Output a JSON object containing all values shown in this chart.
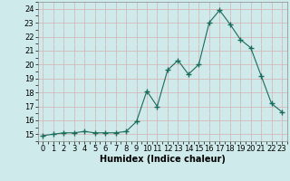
{
  "xlabel": "Humidex (Indice chaleur)",
  "x_values": [
    0,
    1,
    2,
    3,
    4,
    5,
    6,
    7,
    8,
    9,
    10,
    11,
    12,
    13,
    14,
    15,
    16,
    17,
    18,
    19,
    20,
    21,
    22,
    23
  ],
  "y_values": [
    14.9,
    15.0,
    15.1,
    15.1,
    15.2,
    15.1,
    15.1,
    15.1,
    15.2,
    15.9,
    18.1,
    17.0,
    19.6,
    20.3,
    19.3,
    20.0,
    23.0,
    23.9,
    22.9,
    21.8,
    21.2,
    19.2,
    17.2,
    16.6
  ],
  "line_color": "#1a6b5a",
  "marker": "+",
  "marker_size": 4,
  "bg_color": "#ceeaea",
  "grid_color_major": "#d4b8b8",
  "grid_color_minor": "#d8e8e8",
  "ylim": [
    14.5,
    24.5
  ],
  "yticks": [
    15,
    16,
    17,
    18,
    19,
    20,
    21,
    22,
    23,
    24
  ],
  "xticks": [
    0,
    1,
    2,
    3,
    4,
    5,
    6,
    7,
    8,
    9,
    10,
    11,
    12,
    13,
    14,
    15,
    16,
    17,
    18,
    19,
    20,
    21,
    22,
    23
  ],
  "tick_fontsize": 6,
  "xlabel_fontsize": 7
}
